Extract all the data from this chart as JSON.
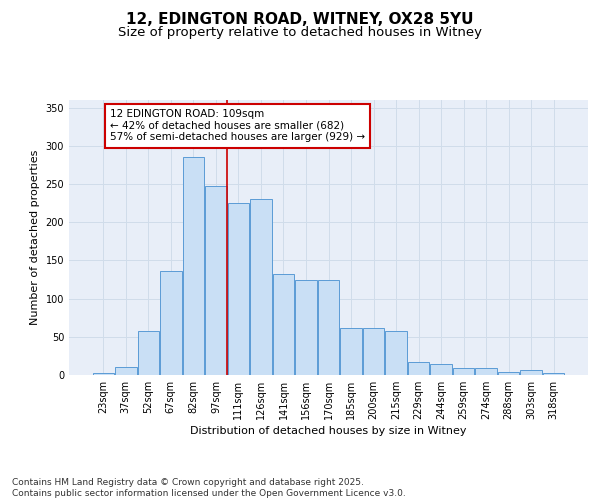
{
  "title1": "12, EDINGTON ROAD, WITNEY, OX28 5YU",
  "title2": "Size of property relative to detached houses in Witney",
  "xlabel": "Distribution of detached houses by size in Witney",
  "ylabel": "Number of detached properties",
  "footer": "Contains HM Land Registry data © Crown copyright and database right 2025.\nContains public sector information licensed under the Open Government Licence v3.0.",
  "bin_labels": [
    "23sqm",
    "37sqm",
    "52sqm",
    "67sqm",
    "82sqm",
    "97sqm",
    "111sqm",
    "126sqm",
    "141sqm",
    "156sqm",
    "170sqm",
    "185sqm",
    "200sqm",
    "215sqm",
    "229sqm",
    "244sqm",
    "259sqm",
    "274sqm",
    "288sqm",
    "303sqm",
    "318sqm"
  ],
  "bar_heights": [
    3,
    10,
    58,
    136,
    285,
    248,
    225,
    230,
    132,
    125,
    125,
    62,
    62,
    58,
    17,
    15,
    9,
    9,
    4,
    7,
    2
  ],
  "bar_color": "#c9dff5",
  "bar_edge_color": "#5b9bd5",
  "grid_color": "#d0dcea",
  "vline_color": "#cc0000",
  "annotation_text": "12 EDINGTON ROAD: 109sqm\n← 42% of detached houses are smaller (682)\n57% of semi-detached houses are larger (929) →",
  "annotation_box_color": "#cc0000",
  "ylim": [
    0,
    360
  ],
  "yticks": [
    0,
    50,
    100,
    150,
    200,
    250,
    300,
    350
  ],
  "bg_color": "#e8eef8",
  "title1_fontsize": 11,
  "title2_fontsize": 9.5,
  "axis_label_fontsize": 8,
  "tick_fontsize": 7,
  "annot_fontsize": 7.5,
  "footer_fontsize": 6.5
}
